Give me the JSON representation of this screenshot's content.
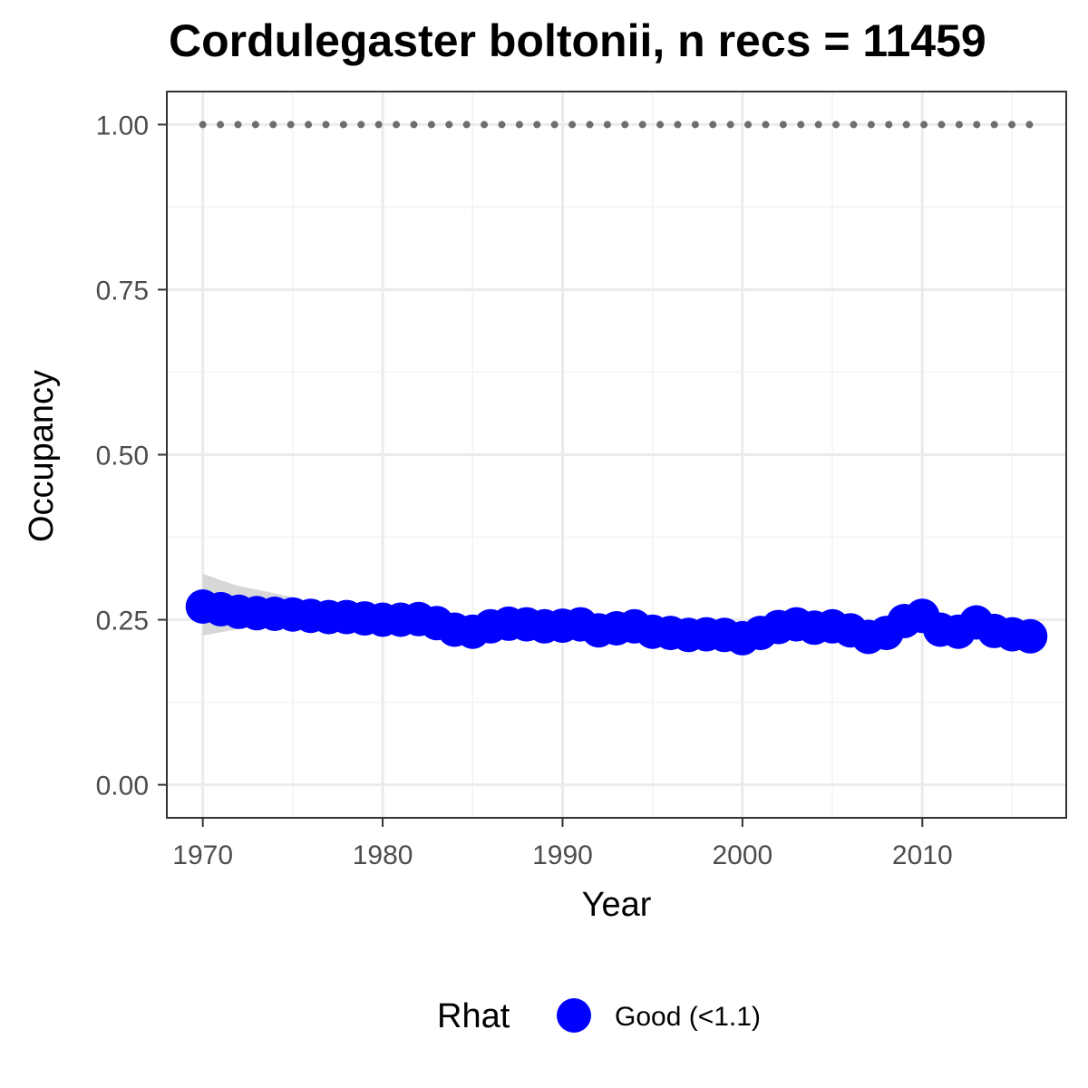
{
  "chart_data": {
    "type": "scatter",
    "title": "Cordulegaster boltonii, n recs = 11459",
    "xlabel": "Year",
    "ylabel": "Occupancy",
    "xlim": [
      1968,
      2018
    ],
    "ylim": [
      -0.05,
      1.05
    ],
    "x_ticks": [
      1970,
      1980,
      1990,
      2000,
      2010
    ],
    "y_ticks": [
      0.0,
      0.25,
      0.5,
      0.75,
      1.0
    ],
    "y_tick_labels": [
      "0.00",
      "0.25",
      "0.50",
      "0.75",
      "1.00"
    ],
    "grid": true,
    "legend": {
      "title": "Rhat",
      "position": "bottom",
      "entries": [
        {
          "label": "Good (<1.1)",
          "color": "#0000ff"
        }
      ]
    },
    "series": [
      {
        "name": "Good (<1.1)",
        "color": "#0000ff",
        "x": [
          1970,
          1971,
          1972,
          1973,
          1974,
          1975,
          1976,
          1977,
          1978,
          1979,
          1980,
          1981,
          1982,
          1983,
          1984,
          1985,
          1986,
          1987,
          1988,
          1989,
          1990,
          1991,
          1992,
          1993,
          1994,
          1995,
          1996,
          1997,
          1998,
          1999,
          2000,
          2001,
          2002,
          2003,
          2004,
          2005,
          2006,
          2007,
          2008,
          2009,
          2010,
          2011,
          2012,
          2013,
          2014,
          2015,
          2016
        ],
        "y": [
          0.27,
          0.266,
          0.262,
          0.26,
          0.259,
          0.258,
          0.256,
          0.254,
          0.254,
          0.252,
          0.25,
          0.25,
          0.251,
          0.245,
          0.235,
          0.232,
          0.24,
          0.244,
          0.243,
          0.24,
          0.241,
          0.243,
          0.234,
          0.237,
          0.24,
          0.232,
          0.23,
          0.227,
          0.228,
          0.227,
          0.222,
          0.23,
          0.239,
          0.243,
          0.238,
          0.24,
          0.234,
          0.224,
          0.23,
          0.248,
          0.256,
          0.235,
          0.232,
          0.246,
          0.233,
          0.228,
          0.225
        ]
      }
    ],
    "confidence_band": {
      "color": "#d3d3d3",
      "x": [
        1970,
        1971,
        1972,
        1974,
        1976,
        1978,
        1980,
        1982
      ],
      "lower": [
        0.226,
        0.231,
        0.236,
        0.24,
        0.243,
        0.245,
        0.246,
        0.247
      ],
      "upper": [
        0.32,
        0.31,
        0.301,
        0.29,
        0.278,
        0.268,
        0.26,
        0.256
      ]
    },
    "reference_line": {
      "y": 1.0,
      "x_start": 1970,
      "x_end": 2016,
      "style": "dotted",
      "color": "#6e6e6e"
    }
  }
}
